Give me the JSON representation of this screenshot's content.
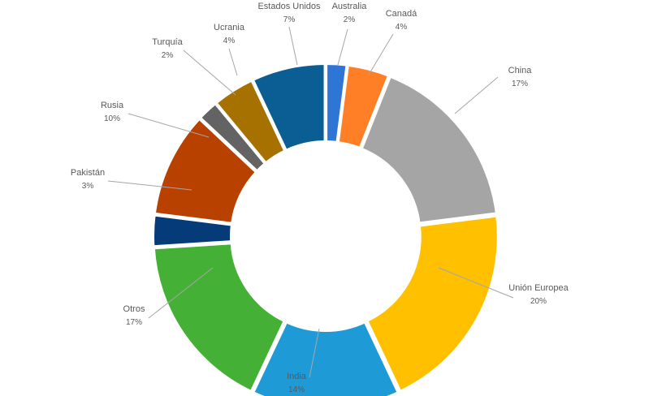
{
  "chart_data": {
    "type": "pie",
    "subtype": "donut",
    "title": "",
    "legend": "none",
    "slices": [
      {
        "label": "Australia",
        "value": 2,
        "value_text": "2%",
        "color": "#2E75D6"
      },
      {
        "label": "Canadá",
        "value": 4,
        "value_text": "4%",
        "color": "#FF7F27"
      },
      {
        "label": "China",
        "value": 17,
        "value_text": "17%",
        "color": "#A5A5A5"
      },
      {
        "label": "Unión Europea",
        "value": 20,
        "value_text": "20%",
        "color": "#FFC000"
      },
      {
        "label": "India",
        "value": 14,
        "value_text": "14%",
        "color": "#1E9BD7"
      },
      {
        "label": "Otros",
        "value": 17,
        "value_text": "17%",
        "color": "#44B035"
      },
      {
        "label": "Pakistán",
        "value": 3,
        "value_text": "3%",
        "color": "#053B78"
      },
      {
        "label": "Rusia",
        "value": 10,
        "value_text": "10%",
        "color": "#B94100"
      },
      {
        "label": "Turquía",
        "value": 2,
        "value_text": "2%",
        "color": "#636363"
      },
      {
        "label": "Ucrania",
        "value": 4,
        "value_text": "4%",
        "color": "#A77100"
      },
      {
        "label": "Estados Unidos",
        "value": 7,
        "value_text": "7%",
        "color": "#0B5E93"
      }
    ]
  }
}
